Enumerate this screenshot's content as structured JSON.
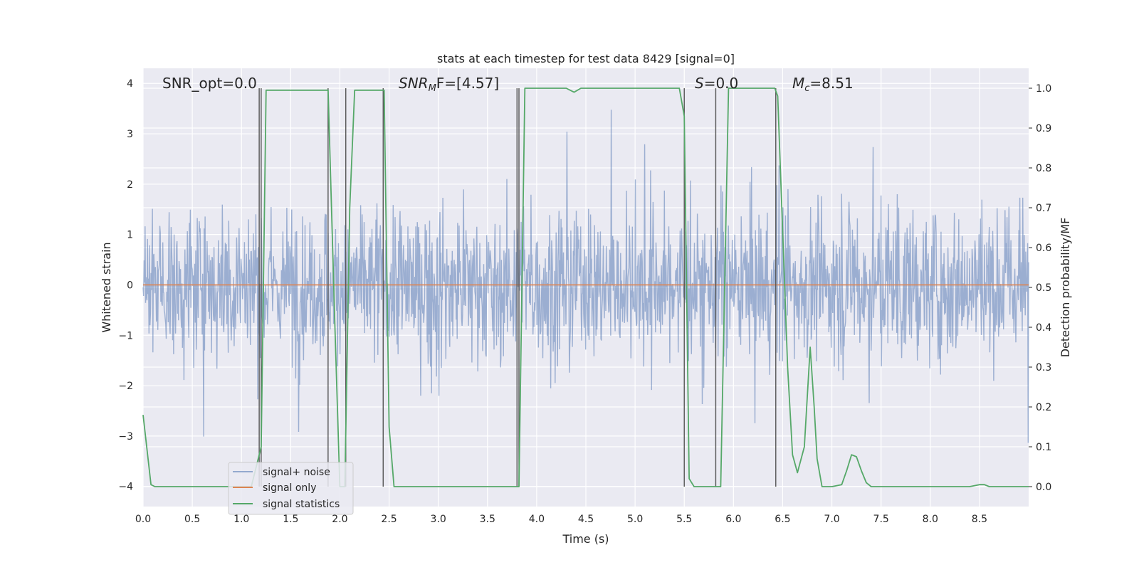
{
  "chart_data": {
    "type": "line",
    "title": "stats at each timestep for test data 8429 [signal=0]",
    "xlabel": "Time (s)",
    "ylabel_left": "Whitened strain",
    "ylabel_right": "Detection probability/MF",
    "xlim": [
      0.0,
      9.0
    ],
    "ylim_left": [
      -4.4,
      4.3
    ],
    "ylim_right": [
      -0.05,
      1.05
    ],
    "x_ticks": [
      "0.0",
      "0.5",
      "1.0",
      "1.5",
      "2.0",
      "2.5",
      "3.0",
      "3.5",
      "4.0",
      "4.5",
      "5.0",
      "5.5",
      "6.0",
      "6.5",
      "7.0",
      "7.5",
      "8.0",
      "8.5"
    ],
    "y_ticks_left": [
      "−4",
      "−3",
      "−2",
      "−1",
      "0",
      "1",
      "2",
      "3",
      "4"
    ],
    "y_ticks_right": [
      "0.0",
      "0.1",
      "0.2",
      "0.3",
      "0.4",
      "0.5",
      "0.6",
      "0.7",
      "0.8",
      "0.9",
      "1.0"
    ],
    "grid": true,
    "legend_position": "lower-left",
    "colors": {
      "background": "#eaeaf2",
      "noise": "#4c72b0",
      "signal_only": "#dd8452",
      "statistics": "#55a868",
      "vlines": "#555555"
    },
    "annotations": {
      "snr_opt": "SNR_opt=0.0",
      "snr_mf_sym": "SNR",
      "snr_mf_sub": "M",
      "snr_mf_rest": "F=[4.57]",
      "s_sym": "S",
      "s_rest": "=0.0",
      "mc_sym": "M",
      "mc_sub": "c",
      "mc_rest": "=8.51"
    },
    "noise_envelope": {
      "typical_abs": 1.6,
      "peak_abs": 3.5,
      "samples": 1800
    },
    "series": [
      {
        "name": "signal+ noise",
        "style": "filled-noise"
      },
      {
        "name": "signal only",
        "x": [
          0.0,
          9.0
        ],
        "y": [
          0.0,
          0.0
        ]
      },
      {
        "name": "signal statistics",
        "axis": "right",
        "x": [
          0.0,
          0.08,
          0.12,
          0.3,
          0.6,
          0.9,
          1.1,
          1.2,
          1.25,
          1.3,
          1.4,
          1.6,
          1.8,
          1.88,
          1.95,
          2.0,
          2.05,
          2.1,
          2.15,
          2.2,
          2.3,
          2.4,
          2.45,
          2.5,
          2.55,
          2.7,
          3.0,
          3.3,
          3.6,
          3.75,
          3.82,
          3.88,
          3.95,
          4.1,
          4.3,
          4.38,
          4.45,
          4.6,
          4.8,
          5.0,
          5.2,
          5.4,
          5.45,
          5.5,
          5.55,
          5.6,
          5.65,
          5.7,
          5.8,
          5.87,
          5.95,
          6.1,
          6.3,
          6.42,
          6.45,
          6.55,
          6.6,
          6.65,
          6.72,
          6.78,
          6.82,
          6.85,
          6.9,
          6.95,
          7.0,
          7.1,
          7.15,
          7.2,
          7.25,
          7.3,
          7.35,
          7.4,
          7.45,
          7.5,
          7.6,
          7.8,
          8.0,
          8.2,
          8.4,
          8.5,
          8.55,
          8.6,
          8.7,
          8.9,
          9.0
        ],
        "y": [
          0.18,
          0.005,
          0.0,
          0.0,
          0.0,
          0.0,
          0.0,
          0.1,
          0.995,
          0.995,
          0.995,
          0.995,
          0.995,
          0.995,
          0.4,
          0.0,
          0.0,
          0.7,
          0.995,
          0.995,
          0.995,
          0.995,
          0.995,
          0.15,
          0.0,
          0.0,
          0.0,
          0.0,
          0.0,
          0.0,
          0.0,
          1.0,
          1.0,
          1.0,
          1.0,
          0.99,
          1.0,
          1.0,
          1.0,
          1.0,
          1.0,
          1.0,
          1.0,
          0.93,
          0.02,
          0.0,
          0.0,
          0.0,
          0.0,
          0.0,
          1.0,
          1.0,
          1.0,
          1.0,
          0.98,
          0.3,
          0.08,
          0.035,
          0.1,
          0.35,
          0.2,
          0.07,
          0.0,
          0.0,
          0.0,
          0.005,
          0.04,
          0.08,
          0.075,
          0.04,
          0.01,
          0.0,
          0.0,
          0.0,
          0.0,
          0.0,
          0.0,
          0.0,
          0.0,
          0.005,
          0.005,
          0.0,
          0.0,
          0.0,
          0.0
        ]
      }
    ],
    "vertical_lines_x": [
      1.18,
      1.2,
      1.88,
      2.06,
      2.44,
      3.8,
      3.82,
      5.5,
      5.82,
      6.43
    ]
  }
}
